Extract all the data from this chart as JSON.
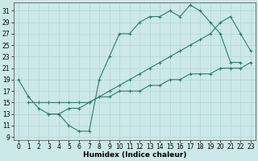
{
  "line1_x": [
    0,
    1,
    2,
    3,
    4,
    5,
    6,
    7,
    8,
    9,
    10,
    11,
    12,
    13,
    14,
    15,
    16,
    17,
    18,
    19,
    20,
    21,
    22
  ],
  "line1_y": [
    19,
    16,
    14,
    13,
    13,
    11,
    10,
    10,
    19,
    23,
    27,
    27,
    29,
    30,
    30,
    31,
    30,
    32,
    31,
    29,
    27,
    22,
    22
  ],
  "line2_x": [
    1,
    2,
    3,
    4,
    5,
    6,
    7,
    8,
    9,
    10,
    11,
    12,
    13,
    14,
    15,
    16,
    17,
    18,
    19,
    20,
    21,
    22,
    23
  ],
  "line2_y": [
    15,
    15,
    15,
    15,
    15,
    15,
    15,
    16,
    16,
    17,
    17,
    17,
    18,
    18,
    19,
    19,
    20,
    20,
    20,
    21,
    21,
    21,
    22
  ],
  "line3_x": [
    3,
    4,
    5,
    6,
    7,
    8,
    9,
    10,
    11,
    12,
    13,
    14,
    15,
    16,
    17,
    18,
    19,
    20,
    21,
    22,
    23
  ],
  "line3_y": [
    13,
    13,
    14,
    14,
    15,
    16,
    17,
    18,
    19,
    20,
    21,
    22,
    23,
    24,
    25,
    26,
    27,
    29,
    30,
    27,
    24
  ],
  "color": "#2e7d6d",
  "bg_color": "#cce8e8",
  "grid_color": "#b0d8d8",
  "xlabel": "Humidex (Indice chaleur)",
  "xlim": [
    -0.5,
    23.5
  ],
  "ylim": [
    8.5,
    32.5
  ],
  "xticks": [
    0,
    1,
    2,
    3,
    4,
    5,
    6,
    7,
    8,
    9,
    10,
    11,
    12,
    13,
    14,
    15,
    16,
    17,
    18,
    19,
    20,
    21,
    22,
    23
  ],
  "yticks": [
    9,
    11,
    13,
    15,
    17,
    19,
    21,
    23,
    25,
    27,
    29,
    31
  ],
  "label_fontsize": 6.5,
  "tick_fontsize": 5.5
}
